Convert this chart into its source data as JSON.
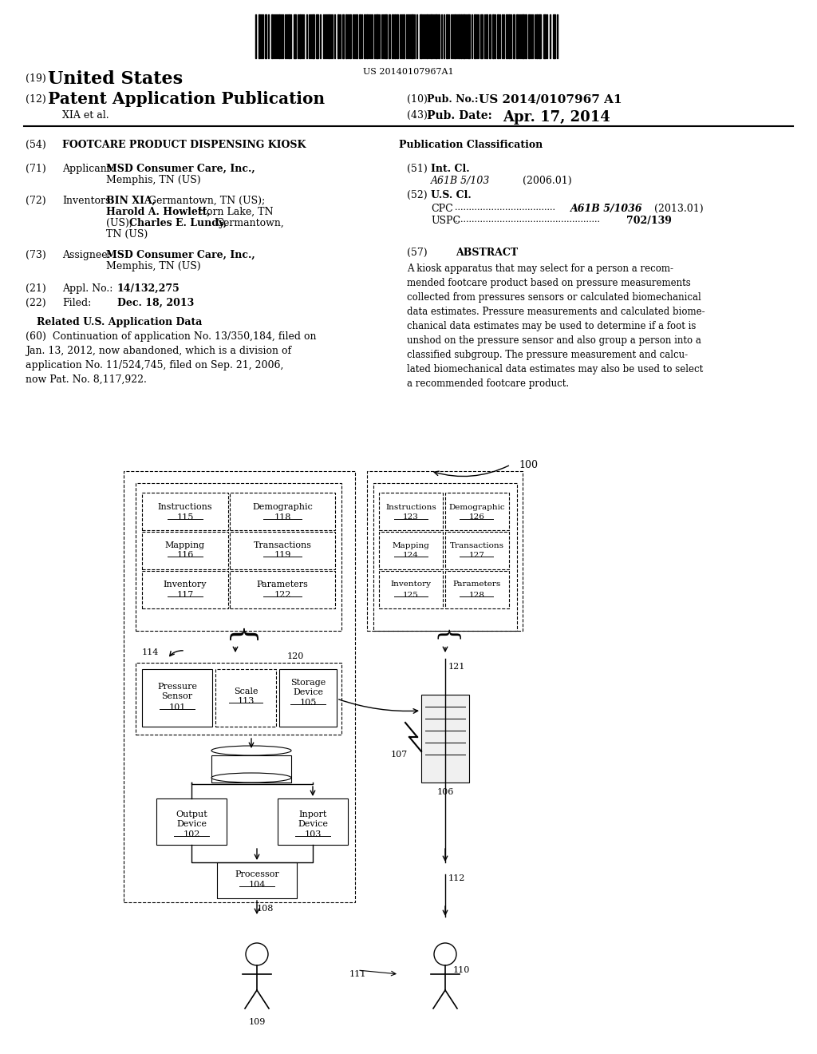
{
  "title": "FOOTCARE PRODUCT DISPENSING KIOSK",
  "pub_number": "US 2014/0107967 A1",
  "pub_date": "Apr. 17, 2014",
  "barcode_text": "US 20140107967A1",
  "header": {
    "line1_num": "(19)",
    "line1_text": "United States",
    "line2_num": "(12)",
    "line2_text": "Patent Application Publication",
    "line3_right1_num": "(10)",
    "line3_right1_label": "Pub. No.:",
    "line3_right1_val": "US 2014/0107967 A1",
    "line4_left": "XIA et al.",
    "line4_right_num": "(43)",
    "line4_right_label": "Pub. Date:",
    "line4_right_val": "Apr. 17, 2014"
  },
  "left_col": [
    {
      "num": "(54)",
      "label": "FOOTCARE PRODUCT DISPENSING KIOSK",
      "bold_label": true
    },
    {
      "num": "(71)",
      "label": "Applicant:",
      "bold_label": false,
      "content": "MSD Consumer Care, Inc., Memphis, TN (US)",
      "bold_start": "MSD Consumer Care, Inc."
    },
    {
      "num": "(72)",
      "label": "Inventors:",
      "bold_label": false,
      "content": "BIN XIA, Germantown, TN (US); Harold A. Howlett, Horn Lake, TN (US); Charles E. Lundy, Germantown, TN (US)"
    },
    {
      "num": "(73)",
      "label": "Assignee:",
      "bold_label": false,
      "content": "MSD Consumer Care, Inc., Memphis, TN (US)",
      "bold_start": "MSD Consumer Care, Inc."
    },
    {
      "num": "(21)",
      "label": "Appl. No.:",
      "bold_label": false,
      "content": "14/132,275",
      "bold_content": true
    },
    {
      "num": "(22)",
      "label": "Filed:",
      "bold_label": false,
      "content": "Dec. 18, 2013",
      "bold_content": true
    }
  ],
  "related_us": {
    "title": "Related U.S. Application Data",
    "content": "(60)  Continuation of application No. 13/350,184, filed on Jan. 13, 2012, now abandoned, which is a division of application No. 11/524,745, filed on Sep. 21, 2006, now Pat. No. 8,117,922."
  },
  "right_col": {
    "pub_class_title": "Publication Classification",
    "int_cl_num": "(51)",
    "int_cl_label": "Int. Cl.",
    "int_cl_val": "A61B 5/103",
    "int_cl_year": "(2006.01)",
    "us_cl_num": "(52)",
    "us_cl_label": "U.S. Cl.",
    "cpc_label": "CPC",
    "cpc_val": "A61B 5/1036",
    "cpc_year": "(2013.01)",
    "uspc_label": "USPC",
    "uspc_val": "702/139",
    "abstract_num": "(57)",
    "abstract_title": "ABSTRACT",
    "abstract_text": "A kiosk apparatus that may select for a person a recommended footcare product based on pressure measurements collected from pressures sensors or calculated biomechanical data estimates. Pressure measurements and calculated biomechanical data estimates may be used to determine if a foot is unshod on the pressure sensor and also group a person into a classified subgroup. The pressure measurement and calculated biomechanical data estimates may also be used to select a recommended footcare product."
  },
  "bg_color": "#ffffff",
  "text_color": "#000000"
}
